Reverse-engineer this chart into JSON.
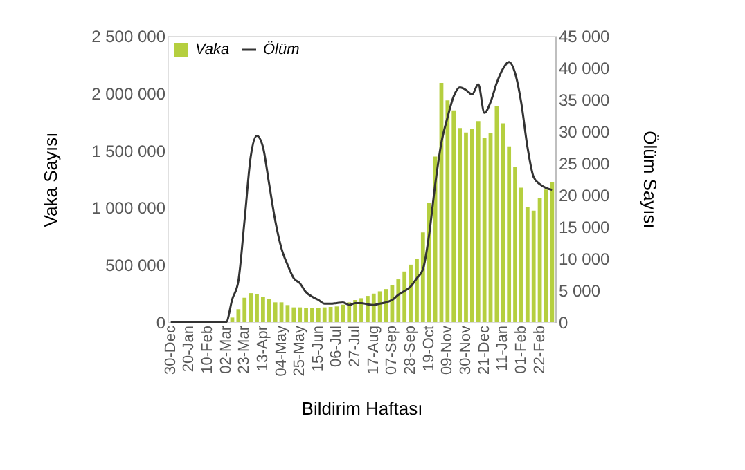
{
  "chart_data": {
    "type": "bar",
    "xlabel": "Bildirim Haftası",
    "ylabel": "Vaka Sayısı",
    "y2label": "Ölüm Sayısı",
    "legend": "top left",
    "grid": false,
    "categories": [
      "30-Dec",
      null,
      null,
      "20-Jan",
      null,
      null,
      "10-Feb",
      null,
      null,
      "02-Mar",
      null,
      null,
      "23-Mar",
      null,
      null,
      "13-Apr",
      null,
      null,
      "04-May",
      null,
      null,
      "25-May",
      null,
      null,
      "15-Jun",
      null,
      null,
      "06-Jul",
      null,
      null,
      "27-Jul",
      null,
      null,
      "17-Aug",
      null,
      null,
      "07-Sep",
      null,
      null,
      "28-Sep",
      null,
      null,
      "19-Oct",
      null,
      null,
      "09-Nov",
      null,
      null,
      "30-Nov",
      null,
      null,
      "21-Dec",
      null,
      null,
      "11-Jan",
      null,
      null,
      "01-Feb",
      null,
      null,
      "22-Feb",
      null,
      null
    ],
    "ylim": [
      0,
      2500000
    ],
    "yticks": [
      0,
      {
        "value": 500000,
        "label": "500 000"
      },
      {
        "value": 1000000,
        "label": "1 000 000"
      },
      {
        "value": 1500000,
        "label": "1 500 000"
      },
      {
        "value": 2000000,
        "label": "2 000 000"
      },
      {
        "value": 2500000,
        "label": "2 500 000"
      }
    ],
    "y2lim": [
      0,
      45000
    ],
    "y2ticks": [
      0,
      {
        "value": 5000,
        "label": "5 000"
      },
      {
        "value": 10000,
        "label": "10 000"
      },
      {
        "value": 15000,
        "label": "15 000"
      },
      {
        "value": 20000,
        "label": "20 000"
      },
      {
        "value": 25000,
        "label": "25 000"
      },
      {
        "value": 30000,
        "label": "30 000"
      },
      {
        "value": 35000,
        "label": "35 000"
      },
      {
        "value": 40000,
        "label": "40 000"
      },
      {
        "value": 45000,
        "label": "45 000"
      }
    ],
    "series": [
      {
        "name": "Vaka",
        "color": "#b5cf3f",
        "values": [
          0,
          0,
          0,
          0,
          0,
          0,
          0,
          0,
          0,
          0,
          40000,
          113000,
          213000,
          253000,
          241000,
          221000,
          201000,
          173000,
          173000,
          149000,
          129000,
          129000,
          121000,
          121000,
          121000,
          129000,
          133000,
          137000,
          153000,
          173000,
          193000,
          209000,
          229000,
          249000,
          269000,
          289000,
          322000,
          374000,
          442000,
          502000,
          555000,
          784000,
          1045000,
          1447000,
          2090000,
          1937000,
          1849000,
          1696000,
          1656000,
          1688000,
          1756000,
          1608000,
          1648000,
          1889000,
          1736000,
          1535000,
          1359000,
          1174000,
          1005000,
          973000,
          1085000,
          1158000,
          1226000
        ]
      },
      {
        "name": "Ölüm",
        "type": "line",
        "axis": "y2",
        "color": "#333333",
        "values": [
          0,
          0,
          0,
          0,
          0,
          0,
          0,
          0,
          0,
          0,
          3600,
          6500,
          16000,
          26000,
          29300,
          27500,
          21700,
          15900,
          11600,
          9000,
          6900,
          6100,
          4700,
          4000,
          3500,
          2900,
          2900,
          3000,
          3100,
          2700,
          3000,
          3000,
          2800,
          2700,
          2900,
          3100,
          3500,
          4300,
          4900,
          5600,
          6900,
          8300,
          13700,
          21700,
          28200,
          32200,
          35500,
          36900,
          36500,
          35800,
          37400,
          32900,
          34600,
          37600,
          39800,
          40900,
          39100,
          34400,
          27500,
          22800,
          21700,
          21100,
          20800
        ]
      }
    ]
  }
}
